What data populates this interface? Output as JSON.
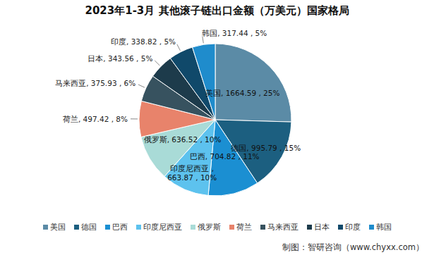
{
  "chart_data": {
    "type": "pie",
    "title": "2023年1-3月  其他滚子链出口金额（万美元）国家格局",
    "categories": [
      "美国",
      "德国",
      "巴西",
      "印度尼西亚",
      "俄罗斯",
      "荷兰",
      "马来西亚",
      "日本",
      "印度",
      "韩国"
    ],
    "values": [
      1664.59,
      995.79,
      704.82,
      663.87,
      636.52,
      497.42,
      375.93,
      343.56,
      338.82,
      317.44
    ],
    "value_labels": [
      "美国, 1664.59 , 25%",
      "德国, 995.79 , 15%",
      "巴西, 704.82 , 11%",
      "印度尼西亚 ,\n663.87 , 10%",
      "俄罗斯, 636.52 , 10%",
      "荷兰, 497.42 , 8%",
      "马来西亚, 375.93 , 6%",
      "日本, 343.56 , 5%",
      "印度, 338.82 , 5%",
      "韩国, 317.44 , 5%"
    ],
    "colors": [
      "#5b8ba6",
      "#1c5f80",
      "#1b8fd2",
      "#5dc2ee",
      "#a9dbd7",
      "#e8836b",
      "#37525f",
      "#1d3b4b",
      "#10496a",
      "#1f8ccc"
    ],
    "data_labels": true,
    "legend": "bottom",
    "source": "制图：智研咨询（www.chyxx.com）"
  }
}
